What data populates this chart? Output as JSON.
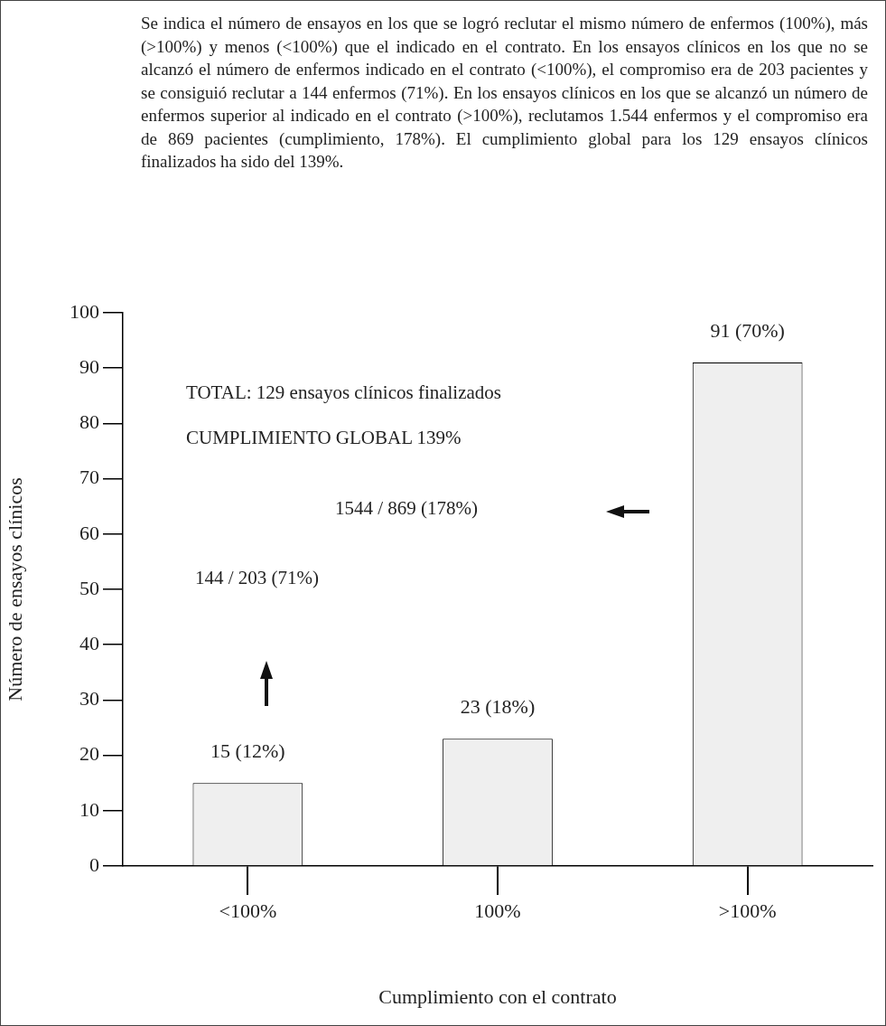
{
  "chart_data": {
    "type": "bar",
    "title": "Se indica el número de ensayos en los que se logró reclutar el mismo número de enfermos (100%), más (>100%) y menos (<100%) que el indicado en el contrato. En los ensayos clínicos en los que no se alcanzó el número de enfermos indicado en el contrato (<100%), el compromiso era de 203 pacientes y se consiguió reclutar a 144 enfermos (71%). En los ensayos clínicos en los que se alcanzó un número de enfermos superior al indicado en el contrato (>100%), reclutamos 1.544 enfermos y el compromiso era de 869 pacientes (cumplimiento, 178%). El cumplimiento global para los 129 ensayos clínicos finalizados ha sido del 139%.",
    "xlabel": "Cumplimiento con el contrato",
    "ylabel": "Número de ensayos clínicos",
    "categories": [
      "<100%",
      "100%",
      ">100%"
    ],
    "values": [
      15,
      23,
      91
    ],
    "color": "#efefef",
    "value_labels": [
      "15 (12%)",
      "23 (18%)",
      "91 (70%)"
    ],
    "ylim": [
      0,
      100
    ],
    "yticks": [
      0,
      10,
      20,
      30,
      40,
      50,
      60,
      70,
      80,
      90,
      100
    ],
    "grid": false,
    "legend": false,
    "annotations": [
      "TOTAL: 129 ensayos clínicos finalizados",
      "CUMPLIMIENTO GLOBAL 139%",
      "1544 / 869 (178%)",
      "144 / 203 (71%)"
    ]
  }
}
